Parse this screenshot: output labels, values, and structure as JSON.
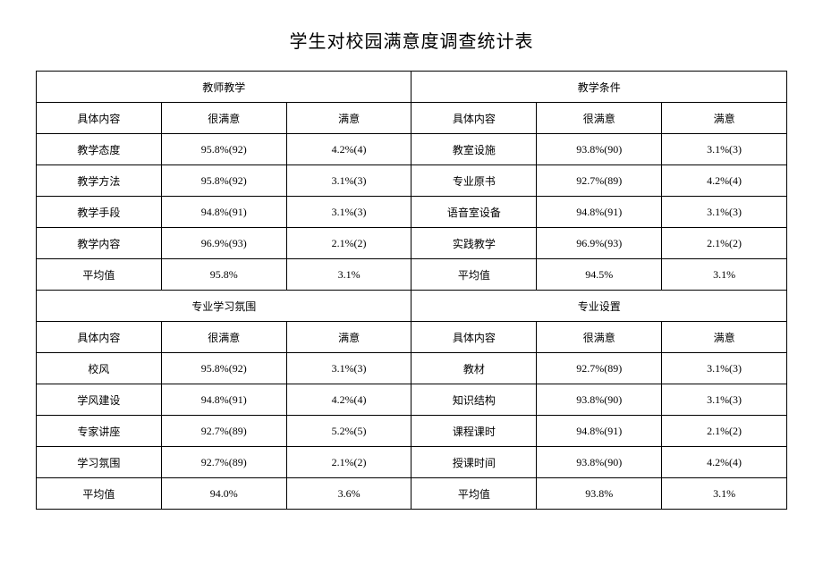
{
  "title": "学生对校园满意度调查统计表",
  "columns": {
    "col1_label": "具体内容",
    "col2_label": "很满意",
    "col3_label": "满意"
  },
  "sections": [
    {
      "left_header": "教师教学",
      "right_header": "教学条件",
      "rows": [
        [
          "教学态度",
          "95.8%(92)",
          "4.2%(4)",
          "教室设施",
          "93.8%(90)",
          "3.1%(3)"
        ],
        [
          "教学方法",
          "95.8%(92)",
          "3.1%(3)",
          "专业原书",
          "92.7%(89)",
          "4.2%(4)"
        ],
        [
          "教学手段",
          "94.8%(91)",
          "3.1%(3)",
          "语音室设备",
          "94.8%(91)",
          "3.1%(3)"
        ],
        [
          "教学内容",
          "96.9%(93)",
          "2.1%(2)",
          "实践教学",
          "96.9%(93)",
          "2.1%(2)"
        ],
        [
          "平均值",
          "95.8%",
          "3.1%",
          "平均值",
          "94.5%",
          "3.1%"
        ]
      ]
    },
    {
      "left_header": "专业学习氛围",
      "right_header": "专业设置",
      "rows": [
        [
          "校风",
          "95.8%(92)",
          "3.1%(3)",
          "教材",
          "92.7%(89)",
          "3.1%(3)"
        ],
        [
          "学风建设",
          "94.8%(91)",
          "4.2%(4)",
          "知识结构",
          "93.8%(90)",
          "3.1%(3)"
        ],
        [
          "专家讲座",
          "92.7%(89)",
          "5.2%(5)",
          "课程课时",
          "94.8%(91)",
          "2.1%(2)"
        ],
        [
          "学习氛围",
          "92.7%(89)",
          "2.1%(2)",
          "授课时间",
          "93.8%(90)",
          "4.2%(4)"
        ],
        [
          "平均值",
          "94.0%",
          "3.6%",
          "平均值",
          "93.8%",
          "3.1%"
        ]
      ]
    }
  ]
}
